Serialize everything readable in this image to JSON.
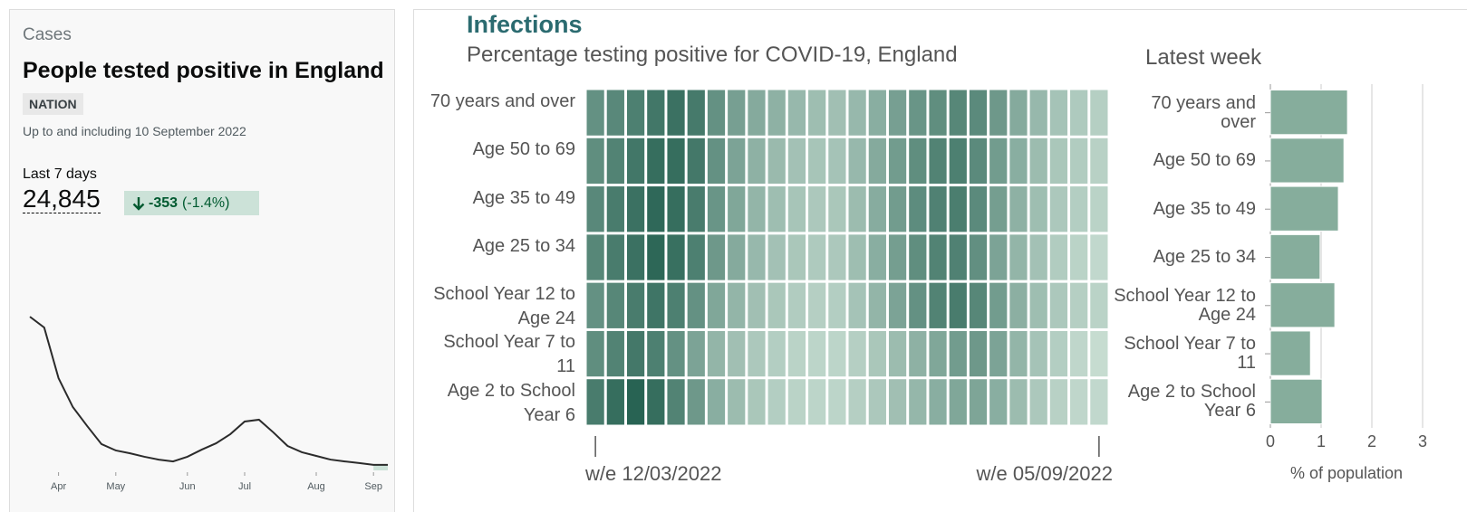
{
  "cases_card": {
    "section": "Cases",
    "title": "People tested positive in England",
    "badge": "NATION",
    "note": "Up to and including 10 September 2022",
    "period": "Last 7 days",
    "value": "24,845",
    "change": "-353",
    "change_percent": "(-1.4%)"
  },
  "chart_data": [
    {
      "type": "line",
      "categories": [
        null,
        null,
        "Apr",
        null,
        null,
        null,
        "May",
        null,
        null,
        null,
        null,
        "Jun",
        null,
        null,
        null,
        "Jul",
        null,
        null,
        null,
        null,
        "Aug",
        null,
        null,
        null,
        "Sep",
        null
      ],
      "values": [
        75500,
        70200,
        45300,
        31100,
        21800,
        12900,
        9800,
        8400,
        6700,
        5300,
        4400,
        6700,
        10200,
        13300,
        17800,
        24000,
        24900,
        18700,
        12000,
        8900,
        7100,
        5300,
        4400,
        3600,
        2700,
        2700
      ],
      "ylim": [
        0,
        80000
      ],
      "color": "#2b2b2b",
      "highlight_color": "#cce2d8"
    },
    {
      "type": "heatmap",
      "title": "Infections",
      "subtitle": "Percentage testing positive for COVID-19, England",
      "rows": [
        "70 years and over",
        "Age 50 to 69",
        "Age 35 to 49",
        "Age 25 to 34",
        "School Year 12 to Age 24",
        "School Year 7 to 11",
        "Age 2 to School Year 6"
      ],
      "columns": [
        "w/e 12/03/2022",
        null,
        null,
        null,
        null,
        null,
        null,
        null,
        null,
        null,
        null,
        null,
        null,
        null,
        null,
        null,
        null,
        null,
        null,
        null,
        null,
        null,
        null,
        null,
        null,
        "w/e 05/09/2022"
      ],
      "values": [
        [
          5.0,
          5.5,
          6.0,
          6.5,
          6.8,
          6.3,
          5.0,
          4.2,
          3.6,
          3.2,
          2.8,
          2.5,
          2.4,
          2.8,
          3.4,
          4.2,
          4.8,
          5.2,
          5.6,
          5.4,
          4.6,
          3.6,
          2.8,
          2.2,
          1.8,
          1.5
        ],
        [
          5.2,
          5.8,
          6.5,
          7.0,
          7.0,
          6.4,
          5.0,
          4.0,
          3.2,
          2.7,
          2.3,
          2.1,
          2.2,
          2.8,
          3.6,
          4.4,
          5.2,
          5.8,
          6.0,
          5.4,
          4.4,
          3.4,
          2.6,
          2.0,
          1.7,
          1.4
        ],
        [
          5.5,
          6.2,
          6.8,
          7.3,
          7.0,
          6.2,
          4.8,
          3.8,
          3.0,
          2.5,
          2.1,
          1.9,
          2.0,
          2.6,
          3.5,
          4.4,
          5.3,
          5.9,
          6.1,
          5.4,
          4.3,
          3.2,
          2.5,
          1.9,
          1.6,
          1.3
        ],
        [
          5.6,
          6.2,
          6.8,
          7.4,
          6.9,
          6.0,
          4.6,
          3.6,
          2.8,
          2.3,
          2.0,
          1.8,
          1.9,
          2.5,
          3.4,
          4.3,
          5.2,
          5.8,
          5.9,
          5.1,
          4.0,
          3.0,
          2.3,
          1.7,
          1.3,
          1.0
        ],
        [
          5.0,
          5.6,
          6.2,
          6.6,
          6.0,
          5.0,
          3.8,
          3.0,
          2.4,
          2.0,
          1.7,
          1.5,
          1.6,
          2.2,
          3.0,
          4.0,
          5.0,
          5.8,
          6.2,
          5.6,
          4.4,
          3.3,
          2.5,
          1.9,
          1.5,
          1.3
        ],
        [
          5.2,
          5.8,
          6.4,
          6.0,
          5.0,
          4.0,
          3.0,
          2.4,
          1.9,
          1.6,
          1.3,
          1.2,
          1.2,
          1.5,
          2.0,
          2.6,
          3.2,
          3.8,
          4.4,
          4.6,
          4.0,
          3.0,
          2.2,
          1.6,
          1.1,
          0.8
        ],
        [
          6.2,
          7.0,
          7.6,
          7.0,
          5.8,
          4.6,
          3.4,
          2.6,
          2.0,
          1.6,
          1.3,
          1.2,
          1.2,
          1.5,
          1.9,
          2.4,
          2.9,
          3.4,
          3.8,
          3.9,
          3.4,
          2.6,
          1.9,
          1.4,
          1.1,
          1.0
        ]
      ],
      "clim": [
        0,
        8
      ],
      "colors": [
        "#d8eadf",
        "#1f5c4c"
      ]
    },
    {
      "type": "bar",
      "orientation": "horizontal",
      "title": "Latest week",
      "categories": [
        "70 years and over",
        "Age 50 to 69",
        "Age 35 to 49",
        "Age 25 to 34",
        "School Year 12 to Age 24",
        "School Year 7 to 11",
        "Age 2 to School Year 6"
      ],
      "values": [
        1.52,
        1.45,
        1.34,
        0.98,
        1.27,
        0.79,
        1.02
      ],
      "color": "#86ad9c",
      "xlim": [
        0,
        3
      ],
      "xticks": [
        0,
        1,
        2,
        3
      ],
      "xlabel": "% of population",
      "grid": true
    }
  ]
}
